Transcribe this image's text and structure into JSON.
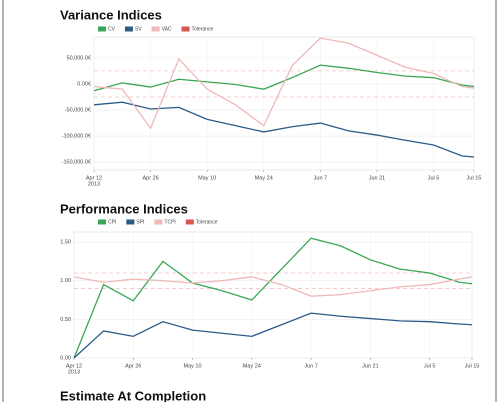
{
  "chart_data": [
    {
      "type": "line",
      "title": "Variance Indices",
      "x": [
        "2013-04-12",
        "2013-04-19",
        "2013-04-26",
        "2013-05-03",
        "2013-05-10",
        "2013-05-17",
        "2013-05-24",
        "2013-05-31",
        "2013-06-07",
        "2013-06-14",
        "2013-06-21",
        "2013-06-28",
        "2013-07-05",
        "2013-07-12",
        "2013-07-15"
      ],
      "xlim": [
        "2013-04-12",
        "2013-07-15"
      ],
      "xticks": [
        {
          "value": "2013-04-12",
          "label": [
            "Apr 12",
            "2013"
          ]
        },
        {
          "value": "2013-04-26",
          "label": "Apr 26"
        },
        {
          "value": "2013-05-10",
          "label": "May 10"
        },
        {
          "value": "2013-05-24",
          "label": "May 24"
        },
        {
          "value": "2013-06-07",
          "label": "Jun 7"
        },
        {
          "value": "2013-06-21",
          "label": "Jun 21"
        },
        {
          "value": "2013-07-05",
          "label": "Jul 5"
        },
        {
          "value": "2013-07-15",
          "label": "Jul 15"
        }
      ],
      "ylim": [
        -165000,
        90000
      ],
      "yticks": [
        {
          "value": 50000,
          "label": "50,000.0€"
        },
        {
          "value": 0,
          "label": "0.00€"
        },
        {
          "value": -50000,
          "label": "-50,000.0€"
        },
        {
          "value": -100000,
          "label": "-100,000.0€"
        },
        {
          "value": -150000,
          "label": "-150,000.0€"
        }
      ],
      "grid": true,
      "series": [
        {
          "name": "CV",
          "color": "#3aa655",
          "values": [
            -13000,
            2000,
            -6000,
            9000,
            4000,
            -1000,
            -10000,
            12000,
            36000,
            30000,
            22000,
            15000,
            12000,
            -2000,
            -5000
          ]
        },
        {
          "name": "SV",
          "color": "#2c5b8a",
          "values": [
            -40000,
            -35000,
            -48000,
            -45000,
            -68000,
            -80000,
            -92000,
            -82000,
            -75000,
            -90000,
            -98000,
            -108000,
            -117000,
            -138000,
            -140000
          ]
        },
        {
          "name": "VAC",
          "color": "#f0b8b8",
          "values": [
            -5000,
            -10000,
            -85000,
            48000,
            -10000,
            -40000,
            -80000,
            35000,
            88000,
            78000,
            55000,
            32000,
            20000,
            -5000,
            -8000
          ]
        }
      ],
      "tolerance": {
        "name": "Tolerance",
        "color": "#d9534f",
        "values": [
          -25000,
          25000
        ]
      }
    },
    {
      "type": "line",
      "title": "Performance Indices",
      "x": [
        "2013-04-12",
        "2013-04-19",
        "2013-04-26",
        "2013-05-03",
        "2013-05-10",
        "2013-05-17",
        "2013-05-24",
        "2013-05-31",
        "2013-06-07",
        "2013-06-14",
        "2013-06-21",
        "2013-06-28",
        "2013-07-05",
        "2013-07-12",
        "2013-07-15"
      ],
      "xlim": [
        "2013-04-12",
        "2013-07-15"
      ],
      "xticks": [
        {
          "value": "2013-04-12",
          "label": [
            "Apr 12",
            "2013"
          ]
        },
        {
          "value": "2013-04-26",
          "label": "Apr 26"
        },
        {
          "value": "2013-05-10",
          "label": "May 10"
        },
        {
          "value": "2013-05-24",
          "label": "May 24"
        },
        {
          "value": "2013-06-07",
          "label": "Jun 7"
        },
        {
          "value": "2013-06-21",
          "label": "Jun 21"
        },
        {
          "value": "2013-07-05",
          "label": "Jul 5"
        },
        {
          "value": "2013-07-15",
          "label": "Jul 15"
        }
      ],
      "ylim": [
        0,
        1.63
      ],
      "yticks": [
        {
          "value": 1.5,
          "label": "1.50"
        },
        {
          "value": 1,
          "label": "1.00"
        },
        {
          "value": 0.5,
          "label": "0.50"
        },
        {
          "value": 0,
          "label": "0.00"
        }
      ],
      "grid": true,
      "series": [
        {
          "name": "CPI",
          "color": "#3aa655",
          "values": [
            0,
            0.95,
            0.74,
            1.25,
            0.97,
            0.87,
            0.75,
            1.15,
            1.55,
            1.45,
            1.27,
            1.15,
            1.1,
            0.98,
            0.96
          ]
        },
        {
          "name": "SPI",
          "color": "#2c5b8a",
          "values": [
            0,
            0.35,
            0.28,
            0.47,
            0.36,
            0.32,
            0.28,
            0.43,
            0.58,
            0.54,
            0.51,
            0.48,
            0.47,
            0.44,
            0.43
          ]
        },
        {
          "name": "TCPI",
          "color": "#f0b8b8",
          "values": [
            1.05,
            0.98,
            1.02,
            1.0,
            0.97,
            1.0,
            1.05,
            0.95,
            0.8,
            0.82,
            0.87,
            0.92,
            0.95,
            1.02,
            1.05
          ]
        }
      ],
      "tolerance": {
        "name": "Tolerance",
        "color": "#d9534f",
        "values": [
          0.9,
          1.1
        ]
      }
    }
  ],
  "next_section": {
    "title": "Estimate At Completion"
  }
}
